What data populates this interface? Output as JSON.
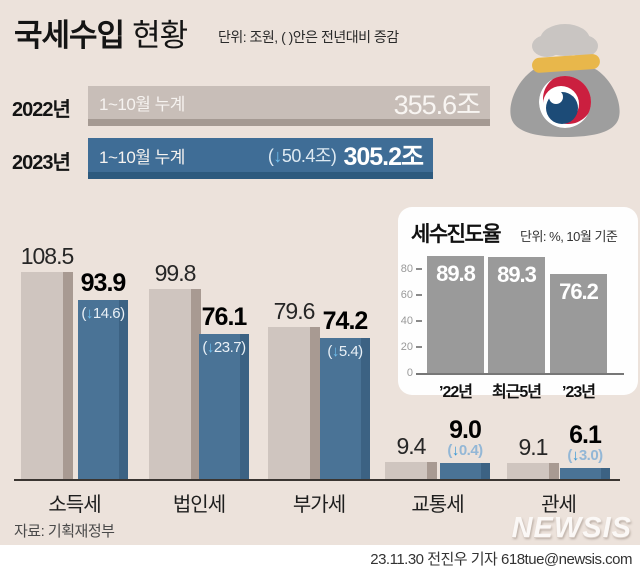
{
  "header": {
    "title_strong": "국세수입",
    "title_rest": "현황",
    "unit_note": "단위: 조원, ( )안은 전년대비 증감"
  },
  "summary": {
    "rows": [
      {
        "year": "2022년",
        "period": "1~10월 누계",
        "delta_label": "",
        "value": "355.6조",
        "num": 355.6
      },
      {
        "year": "2023년",
        "period": "1~10월 누계",
        "delta_label": "(↓50.4조)",
        "value": "305.2조",
        "num": 305.2
      }
    ]
  },
  "chart_data": [
    {
      "type": "bar",
      "title": "국세수입 현황",
      "unit": "조원",
      "note": "( )안은 전년대비 증감",
      "categories": [
        "소득세",
        "법인세",
        "부가세",
        "교통세",
        "관세"
      ],
      "series": [
        {
          "name": "2022년 1~10월 누계",
          "values": [
            108.5,
            99.8,
            79.6,
            9.4,
            9.1
          ]
        },
        {
          "name": "2023년 1~10월 누계",
          "values": [
            93.9,
            76.1,
            74.2,
            9.0,
            6.1
          ]
        }
      ],
      "delta_labels": [
        "(↓14.6)",
        "(↓23.7)",
        "(↓5.4)",
        "(↓0.4)",
        "(↓3.0)"
      ],
      "legend_position": "none",
      "grid": false
    },
    {
      "type": "bar",
      "title": "세수진도율",
      "unit_note": "단위: %, 10월 기준",
      "categories": [
        "’22년",
        "최근5년",
        "’23년"
      ],
      "values": [
        89.8,
        89.3,
        76.2
      ],
      "yticks": [
        80,
        60,
        40,
        20,
        0
      ],
      "ylim": [
        0,
        80
      ],
      "grid": false,
      "legend_position": "none"
    }
  ],
  "colors": {
    "background": "#ece2db",
    "bar_2022": "#c8beb8",
    "bar_2022_shade": "#a59a93",
    "bar_2023": "#3f6d96",
    "bar_2023_shade": "#2d5a7e",
    "bar_gray": "#cfc5bf",
    "bar_blue": "#4a7396",
    "inset_bar": "#9a9a9a",
    "arrow_blue": "#2f95d6"
  },
  "footer": {
    "source": "자료: 기획재정부",
    "logo": "NEWSIS",
    "credit": "23.11.30 전진우 기자 618tue@newsis.com"
  }
}
